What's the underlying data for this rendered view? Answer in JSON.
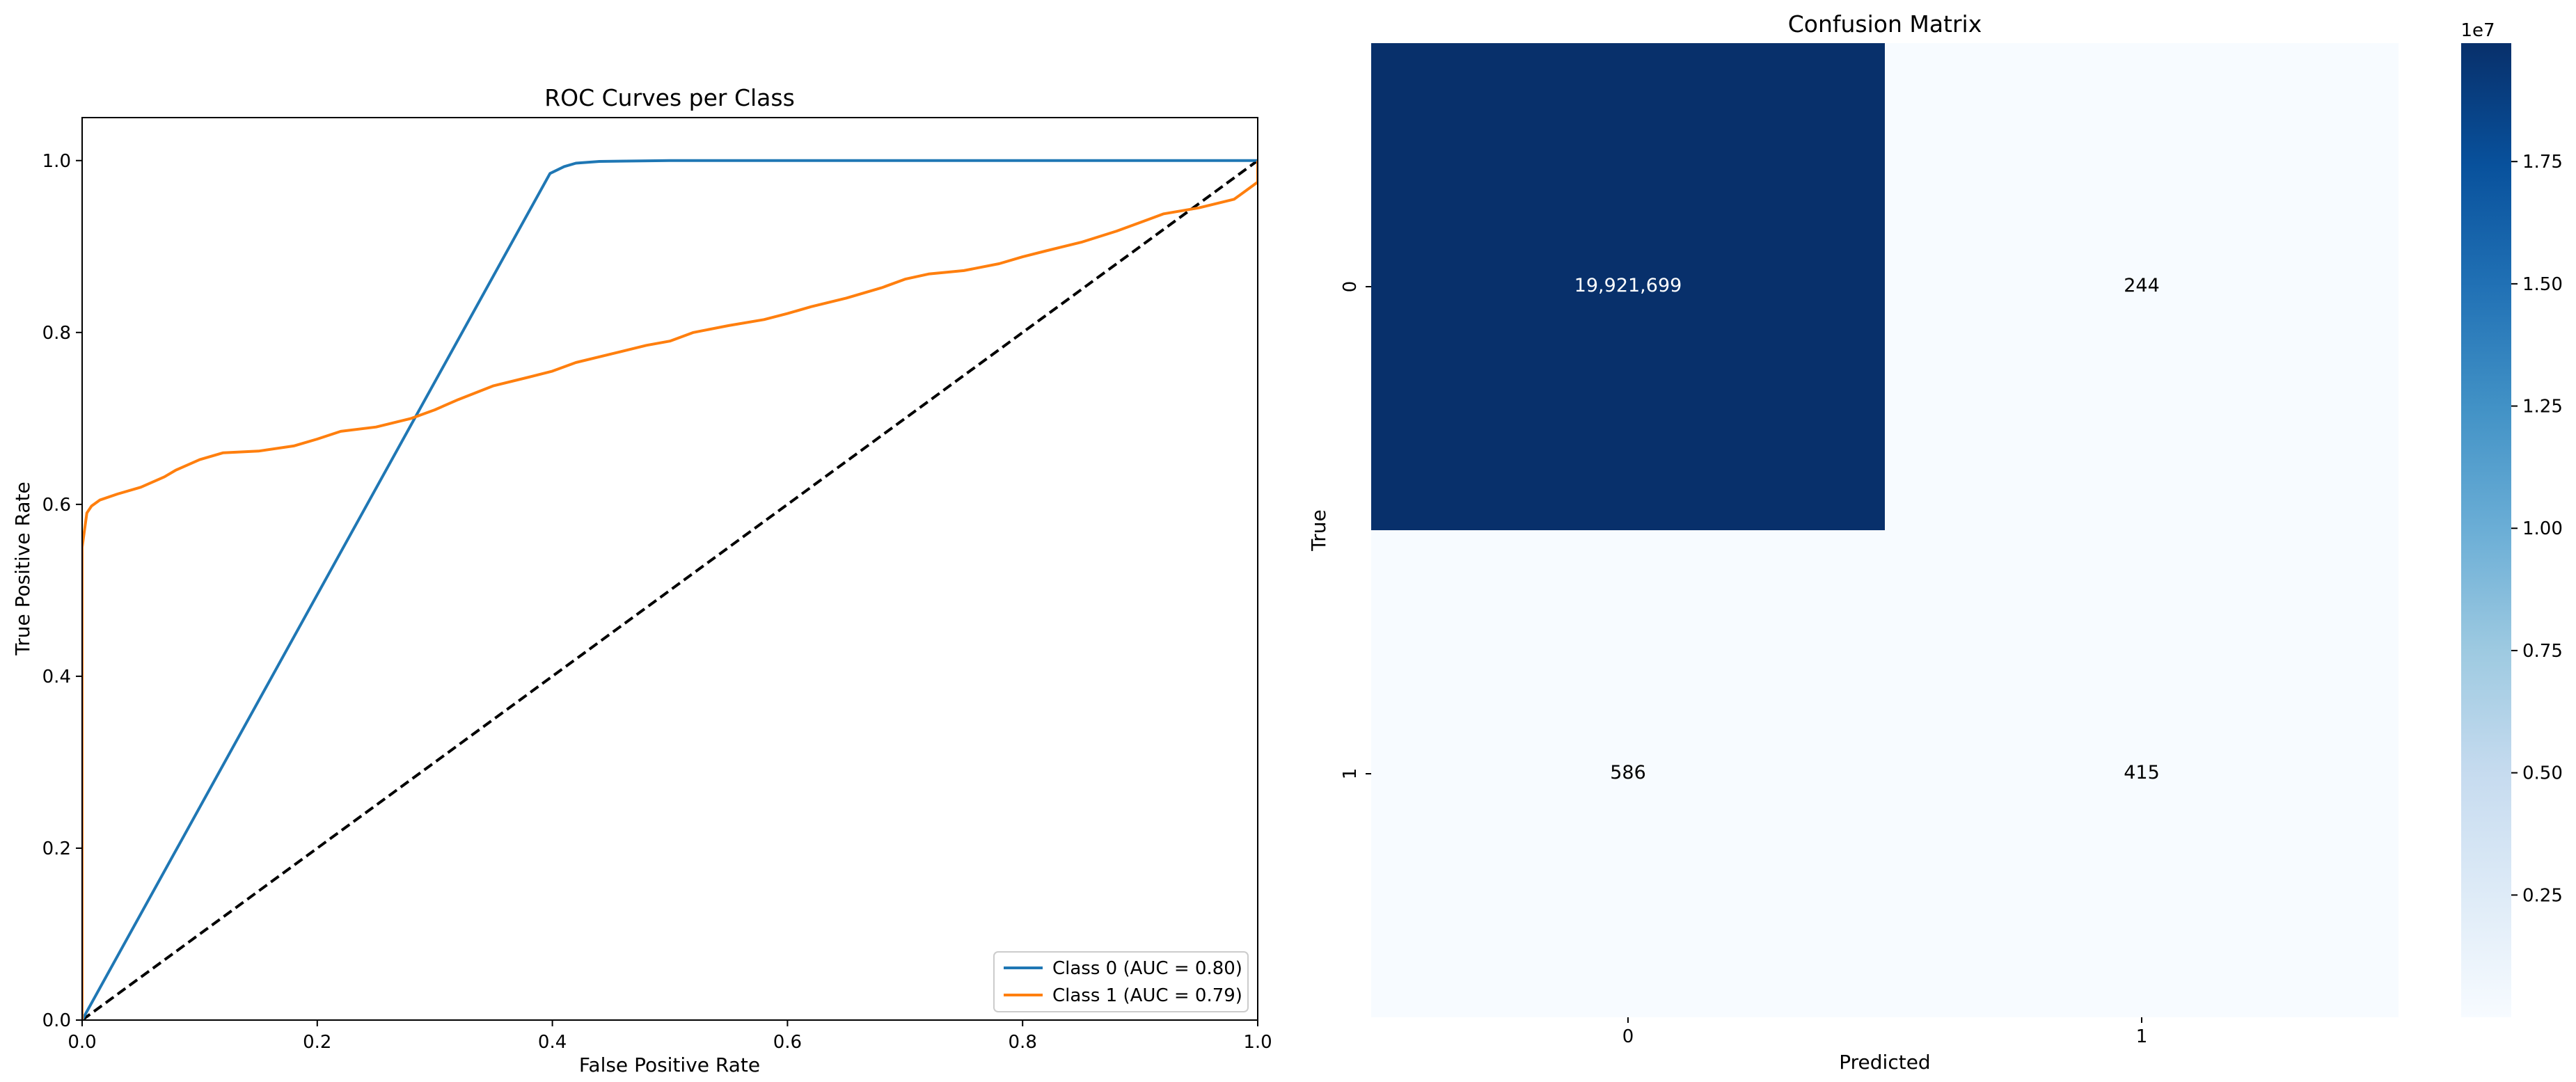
{
  "chart_data": [
    {
      "type": "line",
      "title": "ROC Curves per Class",
      "xlabel": "False Positive Rate",
      "ylabel": "True Positive Rate",
      "xlim": [
        0.0,
        1.0
      ],
      "ylim": [
        0.0,
        1.05
      ],
      "xticks": [
        "0.0",
        "0.2",
        "0.4",
        "0.6",
        "0.8",
        "1.0"
      ],
      "yticks": [
        "0.0",
        "0.2",
        "0.4",
        "0.6",
        "0.8",
        "1.0"
      ],
      "grid": false,
      "legend_position": "lower-right",
      "series": [
        {
          "name": "Class 0 (AUC = 0.80)",
          "color": "#1f77b4",
          "x": [
            0.0,
            0.398,
            0.41,
            0.42,
            0.44,
            0.5,
            1.0
          ],
          "y": [
            0.0,
            0.985,
            0.993,
            0.997,
            0.999,
            1.0,
            1.0
          ]
        },
        {
          "name": "Class 1 (AUC = 0.79)",
          "color": "#ff7f0e",
          "x": [
            0.0,
            0.0,
            0.002,
            0.004,
            0.008,
            0.015,
            0.03,
            0.05,
            0.07,
            0.08,
            0.1,
            0.12,
            0.15,
            0.18,
            0.2,
            0.22,
            0.25,
            0.28,
            0.3,
            0.32,
            0.35,
            0.38,
            0.4,
            0.42,
            0.45,
            0.48,
            0.5,
            0.52,
            0.55,
            0.58,
            0.6,
            0.62,
            0.65,
            0.68,
            0.7,
            0.72,
            0.75,
            0.78,
            0.8,
            0.82,
            0.85,
            0.88,
            0.9,
            0.92,
            0.95,
            0.98,
            0.99,
            1.0,
            1.0
          ],
          "y": [
            0.0,
            0.55,
            0.57,
            0.59,
            0.598,
            0.605,
            0.612,
            0.62,
            0.632,
            0.64,
            0.652,
            0.66,
            0.662,
            0.668,
            0.676,
            0.685,
            0.69,
            0.7,
            0.71,
            0.722,
            0.738,
            0.748,
            0.755,
            0.765,
            0.775,
            0.785,
            0.79,
            0.8,
            0.808,
            0.815,
            0.822,
            0.83,
            0.84,
            0.852,
            0.862,
            0.868,
            0.872,
            0.88,
            0.888,
            0.895,
            0.905,
            0.918,
            0.928,
            0.938,
            0.945,
            0.955,
            0.965,
            0.975,
            1.0
          ]
        },
        {
          "name": "",
          "style": "dashed",
          "color": "#000000",
          "x": [
            0.0,
            1.0
          ],
          "y": [
            0.0,
            1.0
          ]
        }
      ]
    },
    {
      "type": "heatmap",
      "title": "Confusion Matrix",
      "xlabel": "Predicted",
      "ylabel": "True",
      "x_categories": [
        "0",
        "1"
      ],
      "y_categories": [
        "0",
        "1"
      ],
      "values": [
        [
          19921699,
          244
        ],
        [
          586,
          415
        ]
      ],
      "cell_labels": [
        [
          "19,921,699",
          "244"
        ],
        [
          "586",
          "415"
        ]
      ],
      "colormap": "Blues",
      "colorbar": {
        "ticks": [
          "0.25",
          "0.50",
          "0.75",
          "1.00",
          "1.25",
          "1.50",
          "1.75"
        ],
        "offset_label": "1e7",
        "range": [
          0,
          19921699
        ]
      }
    }
  ]
}
